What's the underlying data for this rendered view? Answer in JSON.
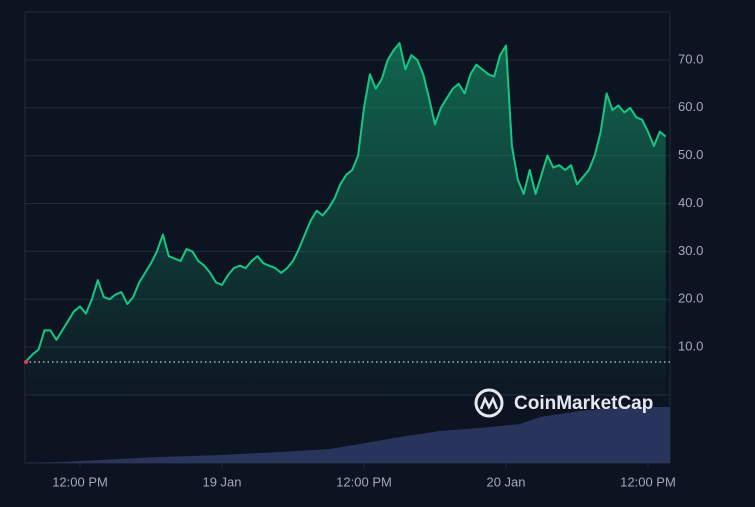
{
  "chart_data": {
    "type": "line",
    "watermark": "CoinMarketCap",
    "color": "#16c784",
    "x": [
      7.5,
      8,
      8.5,
      9,
      9.5,
      10,
      10.5,
      11,
      11.5,
      12,
      12.5,
      13,
      13.5,
      14,
      14.5,
      15,
      15.5,
      16,
      16.5,
      17,
      17.5,
      18,
      18.5,
      19,
      19.5,
      20,
      20.5,
      21,
      21.5,
      22,
      22.5,
      23,
      23.5,
      24,
      24.5,
      25,
      25.5,
      26,
      26.5,
      27,
      27.5,
      28,
      28.5,
      29,
      29.5,
      30,
      30.5,
      31,
      31.5,
      32,
      32.5,
      33,
      33.5,
      34,
      34.5,
      35,
      35.5,
      36,
      36.5,
      37,
      37.5,
      38,
      38.5,
      39,
      39.5,
      40,
      40.5,
      41,
      41.5,
      42,
      42.5,
      43,
      43.5,
      44,
      44.5,
      45,
      45.5,
      46,
      46.5,
      47,
      47.5,
      48,
      48.5,
      49,
      49.5,
      50,
      50.5,
      51,
      51.5,
      52,
      52.5,
      53,
      53.5,
      54,
      54.5,
      55,
      55.5,
      56,
      56.5,
      57,
      57.5,
      58,
      58.5,
      59,
      59.5,
      60,
      60.5,
      61,
      61.5
    ],
    "values": [
      7.2,
      8.5,
      9.5,
      13.5,
      13.5,
      11.5,
      13.5,
      15.5,
      17.5,
      18.5,
      17,
      20,
      24,
      20.5,
      20,
      21,
      21.5,
      19,
      20.5,
      23.5,
      25.5,
      27.5,
      30,
      33.5,
      29,
      28.5,
      28,
      30.5,
      30,
      28,
      27,
      25.5,
      23.5,
      23,
      25,
      26.5,
      27,
      26.5,
      28,
      29,
      27.5,
      27,
      26.5,
      25.5,
      26.5,
      28,
      30.5,
      33.5,
      36.5,
      38.5,
      37.5,
      39,
      41,
      44,
      46,
      47,
      50,
      60,
      67,
      64,
      66,
      70,
      72,
      73.5,
      68,
      71,
      70,
      67,
      62,
      56.5,
      60,
      62,
      64,
      65,
      63,
      67,
      69,
      68,
      67,
      66.5,
      71,
      73,
      52,
      45,
      42,
      47,
      42,
      46,
      50,
      47.5,
      48,
      47,
      48,
      44,
      45.5,
      47,
      50,
      55,
      63,
      59.5,
      60.5,
      59,
      60,
      58,
      57.5,
      55,
      52,
      55,
      54
    ],
    "baseline": 6.9,
    "xlim": [
      7.35,
      61.86
    ],
    "xticks": [
      {
        "value": 12,
        "label": "12:00 PM"
      },
      {
        "value": 24,
        "label": "19 Jan"
      },
      {
        "value": 36,
        "label": "12:00 PM"
      },
      {
        "value": 48,
        "label": "20 Jan"
      },
      {
        "value": 60,
        "label": "12:00 PM"
      }
    ],
    "ylim": [
      0,
      80
    ],
    "yticks": [
      {
        "value": 10,
        "label": "10.0"
      },
      {
        "value": 20,
        "label": "20.0"
      },
      {
        "value": 30,
        "label": "30.0"
      },
      {
        "value": 40,
        "label": "40.0"
      },
      {
        "value": 50,
        "label": "50.0"
      },
      {
        "value": 60,
        "label": "60.0"
      },
      {
        "value": 70,
        "label": "70.0"
      }
    ],
    "grid": true
  }
}
